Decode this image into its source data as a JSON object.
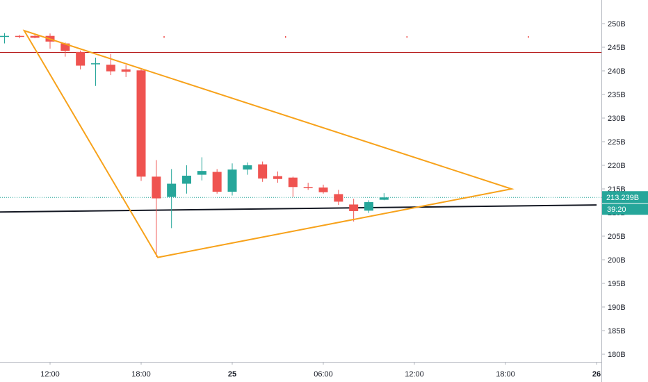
{
  "chart_data": {
    "type": "candlestick",
    "yaxis": {
      "ticks": [
        250,
        245,
        240,
        235,
        230,
        225,
        220,
        215,
        210,
        205,
        200,
        195,
        190,
        185,
        180
      ],
      "tick_labels": [
        "250B",
        "245B",
        "240B",
        "235B",
        "230B",
        "225B",
        "220B",
        "215B",
        "210B",
        "205B",
        "200B",
        "195B",
        "190B",
        "185B",
        "180B"
      ],
      "range": [
        178.5,
        252.5
      ],
      "position": "right"
    },
    "xaxis": {
      "ticks": [
        {
          "label": "12:00",
          "hour": 12,
          "bold": false
        },
        {
          "label": "18:00",
          "hour": 18,
          "bold": false
        },
        {
          "label": "25",
          "hour": 24,
          "bold": true
        },
        {
          "label": "06:00",
          "hour": 30,
          "bold": false
        },
        {
          "label": "12:00",
          "hour": 36,
          "bold": false
        },
        {
          "label": "18:00",
          "hour": 42,
          "bold": false
        },
        {
          "label": "26",
          "hour": 48,
          "bold": true
        }
      ]
    },
    "candles": [
      {
        "t": 9.0,
        "o": 247.3,
        "h": 248.0,
        "l": 245.8,
        "c": 247.4
      },
      {
        "t": 10.0,
        "o": 247.4,
        "h": 247.6,
        "l": 246.9,
        "c": 247.2
      },
      {
        "t": 11.0,
        "o": 247.4,
        "h": 247.6,
        "l": 246.9,
        "c": 247.0
      },
      {
        "t": 12.0,
        "o": 247.4,
        "h": 247.9,
        "l": 244.7,
        "c": 246.2
      },
      {
        "t": 13.0,
        "o": 245.8,
        "h": 246.0,
        "l": 243.0,
        "c": 244.2
      },
      {
        "t": 14.0,
        "o": 244.0,
        "h": 244.3,
        "l": 240.3,
        "c": 241.1
      },
      {
        "t": 15.0,
        "o": 241.4,
        "h": 242.8,
        "l": 236.8,
        "c": 241.6
      },
      {
        "t": 16.0,
        "o": 241.3,
        "h": 243.6,
        "l": 239.1,
        "c": 239.9
      },
      {
        "t": 17.0,
        "o": 240.3,
        "h": 241.2,
        "l": 238.7,
        "c": 239.8
      },
      {
        "t": 18.0,
        "o": 240.1,
        "h": 240.6,
        "l": 216.7,
        "c": 217.6
      },
      {
        "t": 19.0,
        "o": 217.6,
        "h": 221.1,
        "l": 200.6,
        "c": 213.0
      },
      {
        "t": 20.0,
        "o": 213.3,
        "h": 219.2,
        "l": 206.7,
        "c": 216.1
      },
      {
        "t": 21.0,
        "o": 216.1,
        "h": 220.0,
        "l": 214.0,
        "c": 217.8
      },
      {
        "t": 22.0,
        "o": 218.0,
        "h": 221.7,
        "l": 216.8,
        "c": 218.8
      },
      {
        "t": 23.0,
        "o": 218.6,
        "h": 219.2,
        "l": 214.0,
        "c": 214.4
      },
      {
        "t": 24.0,
        "o": 214.4,
        "h": 220.4,
        "l": 213.6,
        "c": 219.1
      },
      {
        "t": 25.0,
        "o": 219.1,
        "h": 220.6,
        "l": 218.0,
        "c": 220.0
      },
      {
        "t": 26.0,
        "o": 220.2,
        "h": 220.8,
        "l": 216.5,
        "c": 217.2
      },
      {
        "t": 27.0,
        "o": 217.7,
        "h": 218.7,
        "l": 216.3,
        "c": 217.1
      },
      {
        "t": 28.0,
        "o": 217.4,
        "h": 217.6,
        "l": 213.3,
        "c": 215.4
      },
      {
        "t": 29.0,
        "o": 215.4,
        "h": 216.3,
        "l": 214.8,
        "c": 215.2
      },
      {
        "t": 30.0,
        "o": 215.3,
        "h": 215.9,
        "l": 214.0,
        "c": 214.3
      },
      {
        "t": 31.0,
        "o": 213.9,
        "h": 214.8,
        "l": 211.6,
        "c": 212.3
      },
      {
        "t": 32.0,
        "o": 211.7,
        "h": 212.9,
        "l": 208.1,
        "c": 210.3
      },
      {
        "t": 33.0,
        "o": 210.4,
        "h": 212.6,
        "l": 209.9,
        "c": 212.2
      },
      {
        "t": 34.0,
        "o": 212.7,
        "h": 214.1,
        "l": 212.6,
        "c": 213.2
      }
    ],
    "colors": {
      "up": "#26a69a",
      "down": "#ef5350",
      "triangle": "#f7a21b",
      "resistance": "#b71c1c",
      "trend": "#131722",
      "price_line": "#26a69a"
    },
    "drawings": {
      "triangle": [
        {
          "t": 10.3,
          "v": 248.5
        },
        {
          "t": 19.1,
          "v": 200.5
        },
        {
          "t": 42.4,
          "v": 215.0
        }
      ],
      "resistance": 243.9,
      "trendline": [
        {
          "t": 6.0,
          "v": 210.0
        },
        {
          "t": 48.0,
          "v": 211.6
        }
      ],
      "top_markers": [
        19.5,
        27.5,
        35.5,
        43.5
      ]
    },
    "last_price": {
      "value": 213.2,
      "label": "213.239B",
      "countdown": "39:20"
    }
  }
}
